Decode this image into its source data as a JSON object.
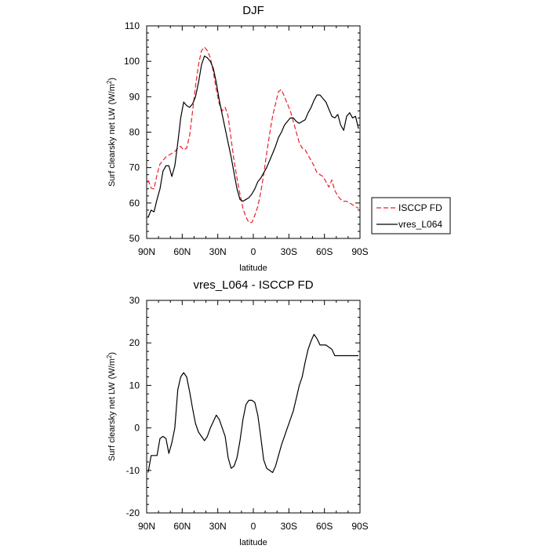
{
  "chart_data": [
    {
      "type": "line",
      "title": "DJF",
      "xlabel": "latitude",
      "ylabel": "Surf clearsky net LW",
      "ylabel_units_prefix": "(W/m",
      "ylabel_units_sup": "2",
      "ylabel_units_suffix": ")",
      "xlim": [
        -90,
        90
      ],
      "ylim": [
        50,
        110
      ],
      "x_ticks": [
        -90,
        -60,
        -30,
        0,
        30,
        60,
        90
      ],
      "x_tick_labels": [
        "90N",
        "60N",
        "30N",
        "0",
        "30S",
        "60S",
        "90S"
      ],
      "y_ticks": [
        50,
        60,
        70,
        80,
        90,
        100,
        110
      ],
      "y_tick_labels": [
        "50",
        "60",
        "70",
        "80",
        "90",
        "100",
        "110"
      ],
      "grid": false,
      "legend_position": "right",
      "series": [
        {
          "name": "ISCCP FD",
          "color": "#e8202a",
          "style": "dashed",
          "x": [
            -88.75,
            -86.25,
            -83.75,
            -81.25,
            -78.75,
            -76.25,
            -73.75,
            -71.25,
            -68.75,
            -66.25,
            -63.75,
            -61.25,
            -58.75,
            -56.25,
            -53.75,
            -51.25,
            -48.75,
            -46.25,
            -43.75,
            -41.25,
            -38.75,
            -36.25,
            -33.75,
            -31.25,
            -28.75,
            -26.25,
            -23.75,
            -21.25,
            -18.75,
            -16.25,
            -13.75,
            -11.25,
            -8.75,
            -6.25,
            -3.75,
            -1.25,
            1.25,
            3.75,
            6.25,
            8.75,
            11.25,
            13.75,
            16.25,
            18.75,
            21.25,
            23.75,
            26.25,
            28.75,
            31.25,
            33.75,
            36.25,
            38.75,
            41.25,
            43.75,
            46.25,
            48.75,
            51.25,
            53.75,
            56.25,
            58.75,
            61.25,
            63.75,
            66.25,
            68.75,
            71.25,
            73.75,
            76.25,
            78.75,
            81.25,
            83.75,
            86.25,
            88.75
          ],
          "values": [
            66.5,
            64.2,
            64,
            68,
            71,
            72,
            73,
            73.5,
            74,
            74.5,
            75.5,
            76,
            75,
            75.5,
            79,
            86,
            93,
            99,
            103,
            104,
            103,
            101,
            97,
            92,
            88,
            86,
            87,
            84.5,
            78,
            72,
            67,
            62.5,
            58.5,
            56,
            54.5,
            54.5,
            56.5,
            59,
            63,
            68,
            74,
            79.5,
            84.5,
            88,
            91.5,
            92,
            90,
            88,
            86,
            83,
            80,
            77,
            75.5,
            75,
            73.5,
            72,
            70.5,
            68.5,
            68,
            67.5,
            66,
            64.5,
            66.5,
            63.5,
            62,
            61,
            60.5,
            60.5,
            60,
            59.5,
            59,
            58.5
          ]
        },
        {
          "name": "vres_L064",
          "color": "#000000",
          "style": "solid",
          "x": [
            -88.75,
            -86.25,
            -83.75,
            -81.25,
            -78.75,
            -76.25,
            -73.75,
            -71.25,
            -68.75,
            -66.25,
            -63.75,
            -61.25,
            -58.75,
            -56.25,
            -53.75,
            -51.25,
            -48.75,
            -46.25,
            -43.75,
            -41.25,
            -38.75,
            -36.25,
            -33.75,
            -31.25,
            -28.75,
            -26.25,
            -23.75,
            -21.25,
            -18.75,
            -16.25,
            -13.75,
            -11.25,
            -8.75,
            -6.25,
            -3.75,
            -1.25,
            1.25,
            3.75,
            6.25,
            8.75,
            11.25,
            13.75,
            16.25,
            18.75,
            21.25,
            23.75,
            26.25,
            28.75,
            31.25,
            33.75,
            36.25,
            38.75,
            41.25,
            43.75,
            46.25,
            48.75,
            51.25,
            53.75,
            56.25,
            58.75,
            61.25,
            63.75,
            66.25,
            68.75,
            71.25,
            73.75,
            76.25,
            78.75,
            81.25,
            83.75,
            86.25,
            88.75
          ],
          "values": [
            56,
            58,
            57.5,
            61,
            64,
            69,
            70.5,
            70.5,
            67.5,
            70.5,
            77,
            84,
            88.5,
            87.5,
            87,
            88,
            90,
            94,
            99,
            101.5,
            101,
            100,
            98,
            94,
            89,
            85,
            81,
            77,
            73,
            68.5,
            64,
            61,
            60.5,
            61,
            61.5,
            62.5,
            64,
            66,
            67,
            68.5,
            70,
            72,
            74,
            76,
            78.5,
            80,
            82,
            83,
            84,
            84,
            83,
            82.5,
            83,
            83.5,
            85.5,
            87,
            89,
            90.5,
            90.5,
            89.5,
            88.5,
            86.5,
            84.5,
            84,
            85,
            82,
            80.5,
            84.5,
            85.5,
            84,
            84.5,
            81
          ]
        }
      ]
    },
    {
      "type": "line",
      "title": "vres_L064 - ISCCP FD",
      "xlabel": "latitude",
      "ylabel": "Surf clearsky net LW",
      "ylabel_units_prefix": "(W/m",
      "ylabel_units_sup": "2",
      "ylabel_units_suffix": ")",
      "xlim": [
        -90,
        90
      ],
      "ylim": [
        -20,
        30
      ],
      "x_ticks": [
        -90,
        -60,
        -30,
        0,
        30,
        60,
        90
      ],
      "x_tick_labels": [
        "90N",
        "60N",
        "30N",
        "0",
        "30S",
        "60S",
        "90S"
      ],
      "y_ticks": [
        -20,
        -10,
        0,
        10,
        20,
        30
      ],
      "y_tick_labels": [
        "-20",
        "-10",
        "0",
        "10",
        "20",
        "30"
      ],
      "grid": false,
      "series": [
        {
          "name": "vres_L064 - ISCCP FD",
          "color": "#000000",
          "style": "solid",
          "x": [
            -88.75,
            -86.25,
            -83.75,
            -81.25,
            -78.75,
            -76.25,
            -73.75,
            -71.25,
            -68.75,
            -66.25,
            -63.75,
            -61.25,
            -58.75,
            -56.25,
            -53.75,
            -51.25,
            -48.75,
            -46.25,
            -43.75,
            -41.25,
            -38.75,
            -36.25,
            -33.75,
            -31.25,
            -28.75,
            -26.25,
            -23.75,
            -21.25,
            -18.75,
            -16.25,
            -13.75,
            -11.25,
            -8.75,
            -6.25,
            -3.75,
            -1.25,
            1.25,
            3.75,
            6.25,
            8.75,
            11.25,
            13.75,
            16.25,
            18.75,
            21.25,
            23.75,
            26.25,
            28.75,
            31.25,
            33.75,
            36.25,
            38.75,
            41.25,
            43.75,
            46.25,
            48.75,
            51.25,
            53.75,
            56.25,
            58.75,
            61.25,
            63.75,
            66.25,
            68.75,
            71.25,
            73.75,
            76.25,
            78.75,
            81.25,
            83.75,
            86.25,
            88.75
          ],
          "values": [
            -10.5,
            -6.5,
            -6.5,
            -6.5,
            -2.5,
            -2,
            -2.5,
            -6,
            -3.5,
            0,
            9,
            12,
            13,
            12,
            8.5,
            4.5,
            1,
            -1,
            -2,
            -3,
            -2,
            0,
            1.5,
            3,
            2,
            0,
            -2,
            -7,
            -9.5,
            -9,
            -7,
            -3,
            2,
            5.5,
            6.5,
            6.5,
            6,
            3,
            -2,
            -7.5,
            -9.5,
            -10,
            -10.5,
            -9,
            -6.5,
            -4,
            -2,
            0,
            2,
            4,
            7,
            10,
            12,
            15.5,
            18.5,
            20.5,
            22,
            21,
            19.5,
            19.5,
            19.5,
            19,
            18.5,
            17,
            17,
            17,
            17,
            17,
            17,
            17,
            17,
            17
          ]
        }
      ]
    }
  ]
}
